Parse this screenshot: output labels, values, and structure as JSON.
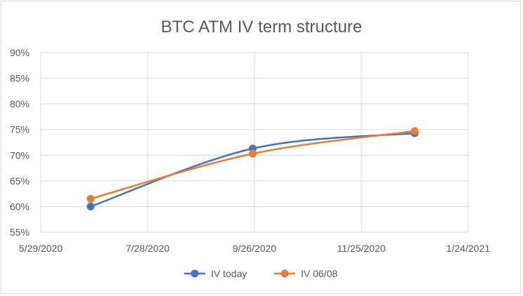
{
  "chart_data": {
    "type": "line",
    "title": "BTC ATM IV term structure",
    "xlabel": "",
    "ylabel": "",
    "x_axis": {
      "type": "date",
      "min": "2020-05-29",
      "max": "2021-01-24",
      "tick_labels": [
        "5/29/2020",
        "7/28/2020",
        "9/26/2020",
        "11/25/2020",
        "1/24/2021"
      ]
    },
    "y_axis": {
      "min": 0.55,
      "max": 0.9,
      "step": 0.05,
      "tick_labels": [
        "55%",
        "60%",
        "65%",
        "70%",
        "75%",
        "80%",
        "85%",
        "90%"
      ]
    },
    "grid": true,
    "legend_position": "bottom",
    "series": [
      {
        "name": "IV today",
        "color": "#4472c4",
        "smooth": true,
        "points": [
          {
            "x": "2020-06-26",
            "y": 0.6
          },
          {
            "x": "2020-09-25",
            "y": 0.713
          },
          {
            "x": "2020-12-25",
            "y": 0.743
          }
        ]
      },
      {
        "name": "IV 06/08",
        "color": "#ed7d31",
        "smooth": true,
        "points": [
          {
            "x": "2020-06-26",
            "y": 0.615
          },
          {
            "x": "2020-09-25",
            "y": 0.703
          },
          {
            "x": "2020-12-25",
            "y": 0.747
          }
        ]
      }
    ]
  }
}
